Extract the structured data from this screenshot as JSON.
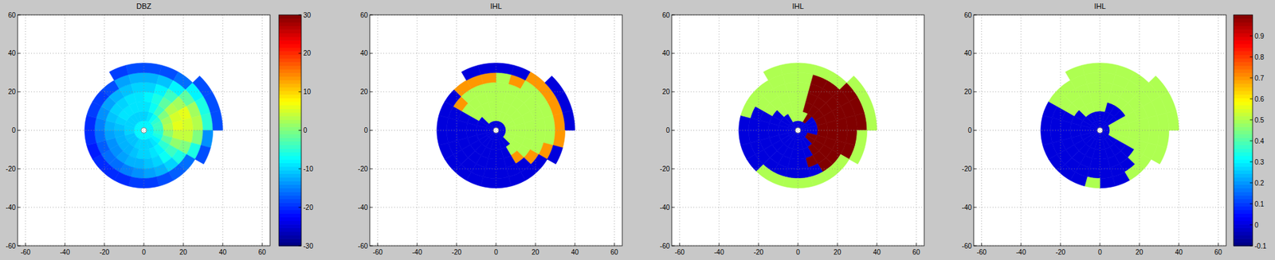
{
  "chart_data": [
    {
      "type": "heatmap",
      "title": "DBZ",
      "xlim": [
        -64,
        64
      ],
      "ylim": [
        -60,
        60
      ],
      "xticks": [
        -60,
        -40,
        -20,
        0,
        20,
        40,
        60
      ],
      "yticks": [
        -60,
        -40,
        -20,
        0,
        20,
        40,
        60
      ],
      "grid": true,
      "azimuth_edges": [
        0,
        15,
        30,
        45,
        60,
        75,
        90,
        105,
        120,
        135,
        150,
        165,
        180,
        195,
        210,
        225,
        240,
        255,
        270,
        285,
        300,
        315,
        330,
        345,
        360
      ],
      "range_edges": [
        0,
        5,
        10,
        15,
        20,
        25,
        30,
        35,
        40
      ],
      "color_range": [
        -30,
        30
      ],
      "colorbar_ticks": [
        -30,
        -20,
        -10,
        0,
        10,
        20,
        30
      ],
      "cells": [
        [
          -8,
          -10,
          -9,
          -8,
          -10,
          -12,
          -18,
          null
        ],
        [
          -8,
          -9,
          -7,
          -6,
          -8,
          -11,
          -18,
          null
        ],
        [
          -8,
          -7,
          -4,
          -2,
          -4,
          -8,
          -16,
          null
        ],
        [
          -8,
          -5,
          0,
          3,
          2,
          -2,
          -8,
          -18
        ],
        [
          -8,
          -4,
          2,
          5,
          6,
          2,
          -6,
          -18
        ],
        [
          -8,
          -4,
          3,
          6,
          5,
          3,
          -5,
          -18
        ],
        [
          -8,
          -5,
          1,
          4,
          4,
          0,
          -14,
          null
        ],
        [
          -8,
          -6,
          -2,
          1,
          0,
          -6,
          -18,
          null
        ],
        [
          -8,
          -8,
          -5,
          -4,
          -6,
          -16,
          null,
          null
        ],
        [
          -8,
          -9,
          -8,
          -7,
          -10,
          -17,
          null,
          null
        ],
        [
          -8,
          -10,
          -9,
          -10,
          -12,
          -18,
          null,
          null
        ],
        [
          -8,
          -10,
          -10,
          -11,
          -13,
          -19,
          null,
          null
        ],
        [
          -8,
          -10,
          -10,
          -12,
          -14,
          -19,
          null,
          null
        ],
        [
          -8,
          -10,
          -11,
          -12,
          -15,
          -20,
          null,
          null
        ],
        [
          -8,
          -11,
          -12,
          -13,
          -16,
          -20,
          null,
          null
        ],
        [
          -8,
          -11,
          -12,
          -14,
          -16,
          -20,
          null,
          null
        ],
        [
          -8,
          -11,
          -12,
          -14,
          -17,
          -21,
          null,
          null
        ],
        [
          -8,
          -10,
          -12,
          -13,
          -16,
          -20,
          null,
          null
        ],
        [
          -8,
          -10,
          -11,
          -12,
          -15,
          -20,
          null,
          null
        ],
        [
          -8,
          -10,
          -10,
          -11,
          -14,
          -19,
          null,
          null
        ],
        [
          -8,
          -10,
          -9,
          -10,
          -13,
          -19,
          null,
          null
        ],
        [
          -8,
          -10,
          -9,
          -10,
          -12,
          -18,
          null,
          null
        ],
        [
          -8,
          -10,
          -9,
          -9,
          -11,
          -13,
          -19,
          null
        ],
        [
          -8,
          -10,
          -9,
          -9,
          -10,
          -12,
          -18,
          null
        ]
      ]
    },
    {
      "type": "heatmap",
      "title": "IHL",
      "xlim": [
        -64,
        64
      ],
      "ylim": [
        -60,
        60
      ],
      "xticks": [
        -60,
        -40,
        -20,
        0,
        20,
        40,
        60
      ],
      "yticks": [
        -60,
        -40,
        -20,
        0,
        20,
        40,
        60
      ],
      "grid": true,
      "azimuth_edges": [
        0,
        15,
        30,
        45,
        60,
        75,
        90,
        105,
        120,
        135,
        150,
        165,
        180,
        195,
        210,
        225,
        240,
        255,
        270,
        285,
        300,
        315,
        330,
        345,
        360
      ],
      "range_edges": [
        0,
        5,
        10,
        15,
        20,
        25,
        30,
        35,
        40
      ],
      "color_range": [
        -0.1,
        1
      ],
      "cells": [
        [
          0,
          0.5,
          0.5,
          0.5,
          0.5,
          0.5,
          0,
          null
        ],
        [
          0,
          0.5,
          0.5,
          0.5,
          0.5,
          0.7,
          0,
          null
        ],
        [
          0,
          0.5,
          0.5,
          0.5,
          0.5,
          0.5,
          0.7,
          null
        ],
        [
          0,
          0.5,
          0.5,
          0.5,
          0.5,
          0.5,
          0.7,
          0
        ],
        [
          0,
          0.5,
          0.5,
          0.5,
          0.5,
          0.5,
          0.7,
          0
        ],
        [
          0,
          0.5,
          0.5,
          0.5,
          0.5,
          0.5,
          0.7,
          0
        ],
        [
          0,
          0.5,
          0.5,
          0.5,
          0.5,
          0.5,
          0.7,
          null
        ],
        [
          0,
          0.5,
          0.5,
          0.5,
          0.5,
          0.7,
          0,
          null
        ],
        [
          0,
          0.5,
          0.5,
          0.5,
          0.7,
          0,
          null,
          null
        ],
        [
          0,
          0,
          0.5,
          0.7,
          0,
          0,
          null,
          null
        ],
        [
          0,
          0,
          0,
          0,
          0,
          0,
          null,
          null
        ],
        [
          0,
          0,
          0,
          0,
          0,
          0,
          null,
          null
        ],
        [
          0,
          0,
          0,
          0,
          0,
          0,
          null,
          null
        ],
        [
          0,
          0,
          0,
          0,
          0,
          0,
          null,
          null
        ],
        [
          0,
          0,
          0,
          0,
          0,
          0,
          null,
          null
        ],
        [
          0,
          0,
          0,
          0,
          0,
          0,
          null,
          null
        ],
        [
          0,
          0,
          0,
          0,
          0,
          0,
          null,
          null
        ],
        [
          0,
          0,
          0,
          0,
          0,
          0,
          null,
          null
        ],
        [
          0,
          0,
          0,
          0,
          0,
          0,
          null,
          null
        ],
        [
          0,
          0,
          0,
          0,
          0,
          0,
          null,
          null
        ],
        [
          0,
          0,
          0.5,
          0.5,
          0.7,
          0,
          null,
          null
        ],
        [
          0,
          0.5,
          0.5,
          0.5,
          0.5,
          0.7,
          null,
          null
        ],
        [
          0,
          0.5,
          0.5,
          0.5,
          0.5,
          0.7,
          0,
          null
        ],
        [
          0,
          0.5,
          0.5,
          0.5,
          0.5,
          0.7,
          0,
          null
        ]
      ]
    },
    {
      "type": "heatmap",
      "title": "IHL",
      "xlim": [
        -64,
        64
      ],
      "ylim": [
        -60,
        60
      ],
      "xticks": [
        -60,
        -40,
        -20,
        0,
        20,
        40,
        60
      ],
      "yticks": [
        -60,
        -40,
        -20,
        0,
        20,
        40,
        60
      ],
      "grid": true,
      "azimuth_edges": [
        0,
        15,
        30,
        45,
        60,
        75,
        90,
        105,
        120,
        135,
        150,
        165,
        180,
        195,
        210,
        225,
        240,
        255,
        270,
        285,
        300,
        315,
        330,
        345,
        360
      ],
      "range_edges": [
        0,
        5,
        10,
        15,
        20,
        25,
        30,
        35,
        40
      ],
      "color_range": [
        -0.1,
        1
      ],
      "cells": [
        [
          0,
          0.5,
          0.5,
          0.5,
          0.5,
          0.5,
          0.5,
          null
        ],
        [
          0,
          0.5,
          1,
          1,
          1,
          1,
          0.5,
          null
        ],
        [
          0,
          1,
          1,
          1,
          1,
          1,
          0.5,
          null
        ],
        [
          0,
          0,
          1,
          1,
          1,
          1,
          1,
          0.5
        ],
        [
          0,
          0,
          1,
          1,
          1,
          1,
          1,
          0.5
        ],
        [
          0,
          0,
          1,
          1,
          1,
          1,
          1,
          0.5
        ],
        [
          0,
          0,
          1,
          1,
          1,
          1,
          0.5,
          null
        ],
        [
          0,
          1,
          1,
          1,
          1,
          1,
          0.5,
          null
        ],
        [
          0,
          1,
          1,
          1,
          1,
          0.5,
          null,
          null
        ],
        [
          0,
          0,
          1,
          1,
          1,
          0.5,
          null,
          null
        ],
        [
          0,
          0,
          0,
          1,
          0,
          0.5,
          null,
          null
        ],
        [
          0,
          0,
          0,
          0,
          0,
          0.5,
          null,
          null
        ],
        [
          0,
          0,
          0,
          0,
          0,
          0.5,
          null,
          null
        ],
        [
          0,
          0,
          0,
          0,
          0,
          0.5,
          null,
          null
        ],
        [
          0,
          0,
          0,
          0,
          0,
          0.5,
          null,
          null
        ],
        [
          0,
          0,
          0,
          0,
          0,
          0,
          null,
          null
        ],
        [
          0,
          0,
          0,
          0,
          0,
          0,
          null,
          null
        ],
        [
          0,
          0,
          0,
          0,
          0,
          0,
          null,
          null
        ],
        [
          0,
          0,
          0,
          0,
          0,
          0,
          null,
          null
        ],
        [
          0,
          0,
          0,
          0,
          0,
          0.5,
          null,
          null
        ],
        [
          0,
          0,
          0,
          0.5,
          0.5,
          0.5,
          null,
          null
        ],
        [
          0,
          0,
          0.5,
          0.5,
          0.5,
          0.5,
          null,
          null
        ],
        [
          0,
          0.5,
          0.5,
          0.5,
          0.5,
          0.5,
          0.5,
          null
        ],
        [
          0,
          0.5,
          0.5,
          0.5,
          0.5,
          0.5,
          0.5,
          null
        ]
      ]
    },
    {
      "type": "heatmap",
      "title": "IHL",
      "xlim": [
        -64,
        64
      ],
      "ylim": [
        -60,
        60
      ],
      "xticks": [
        -60,
        -40,
        -20,
        0,
        20,
        40,
        60
      ],
      "yticks": [
        -60,
        -40,
        -20,
        0,
        20,
        40,
        60
      ],
      "grid": true,
      "azimuth_edges": [
        0,
        15,
        30,
        45,
        60,
        75,
        90,
        105,
        120,
        135,
        150,
        165,
        180,
        195,
        210,
        225,
        240,
        255,
        270,
        285,
        300,
        315,
        330,
        345,
        360
      ],
      "range_edges": [
        0,
        5,
        10,
        15,
        20,
        25,
        30,
        35,
        40
      ],
      "color_range": [
        -0.1,
        1
      ],
      "colorbar_ticks": [
        -0.1,
        0,
        0.1,
        0.2,
        0.3,
        0.4,
        0.5,
        0.6,
        0.7,
        0.8,
        0.9
      ],
      "cells": [
        [
          0,
          0,
          0.5,
          0.5,
          0.5,
          0.5,
          0.5,
          null
        ],
        [
          0,
          0,
          0,
          0.5,
          0.5,
          0.5,
          0.5,
          null
        ],
        [
          0,
          0,
          0,
          0.5,
          0.5,
          0.5,
          0.5,
          null
        ],
        [
          0,
          0,
          0,
          0.5,
          0.5,
          0.5,
          0.5,
          0.5
        ],
        [
          0,
          0.5,
          0.5,
          0.5,
          0.5,
          0.5,
          0.5,
          0.5
        ],
        [
          0,
          0.5,
          0.5,
          0.5,
          0.5,
          0.5,
          0.5,
          0.5
        ],
        [
          0,
          0.5,
          0.5,
          0.5,
          0.5,
          0.5,
          0.5,
          null
        ],
        [
          0,
          0.5,
          0.5,
          0.5,
          0.5,
          0.5,
          0.5,
          null
        ],
        [
          0,
          0,
          0,
          0,
          0.5,
          0.5,
          null,
          null
        ],
        [
          0,
          0,
          0,
          0,
          0,
          0.5,
          null,
          null
        ],
        [
          0,
          0,
          0,
          0,
          0,
          0,
          null,
          null
        ],
        [
          0,
          0,
          0,
          0,
          0,
          0,
          null,
          null
        ],
        [
          0,
          0,
          0,
          0,
          0,
          0.5,
          null,
          null
        ],
        [
          0,
          0,
          0,
          0,
          0,
          0,
          null,
          null
        ],
        [
          0,
          0,
          0,
          0,
          0,
          0,
          null,
          null
        ],
        [
          0,
          0,
          0,
          0,
          0,
          0,
          null,
          null
        ],
        [
          0,
          0,
          0,
          0,
          0,
          0,
          null,
          null
        ],
        [
          0,
          0,
          0,
          0,
          0,
          0,
          null,
          null
        ],
        [
          0,
          0,
          0,
          0,
          0,
          0,
          null,
          null
        ],
        [
          0,
          0,
          0,
          0,
          0,
          0,
          null,
          null
        ],
        [
          0,
          0,
          0,
          0.5,
          0.5,
          0.5,
          null,
          null
        ],
        [
          0,
          0,
          0.5,
          0.5,
          0.5,
          0.5,
          null,
          null
        ],
        [
          0,
          0,
          0.5,
          0.5,
          0.5,
          0.5,
          0.5,
          null
        ],
        [
          0,
          0,
          0.5,
          0.5,
          0.5,
          0.5,
          0.5,
          null
        ]
      ]
    }
  ]
}
